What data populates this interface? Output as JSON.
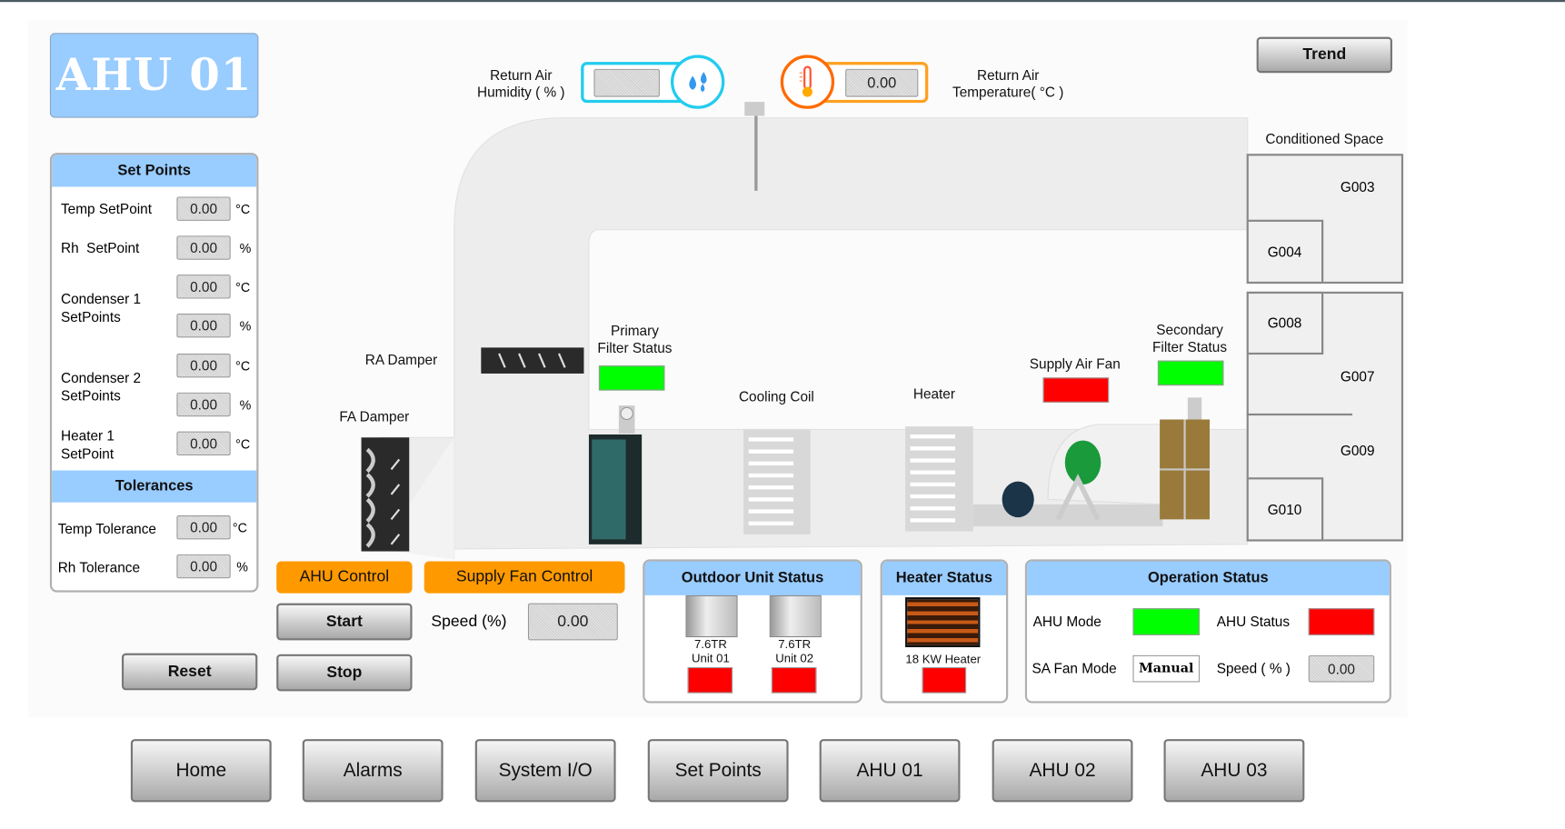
{
  "title": "AHU 01",
  "trend_label": "Trend",
  "return_air": {
    "humidity_label_1": "Return Air",
    "humidity_label_2": "Humidity ( % )",
    "humidity_value": "",
    "temperature_label_1": "Return Air",
    "temperature_label_2": "Temperature( °C )",
    "temperature_value": "0.00",
    "humidity_color": "#22ccee",
    "temperature_color": "#ff6a00"
  },
  "set_points": {
    "header": "Set Points",
    "temp_label": "Temp SetPoint",
    "temp_value": "0.00",
    "temp_unit": "°C",
    "rh_label": "Rh  SetPoint",
    "rh_value": "0.00",
    "rh_unit": "%",
    "cond1_label_1": "Condenser 1",
    "cond1_label_2": "SetPoints",
    "cond1_temp": "0.00",
    "cond1_temp_unit": "°C",
    "cond1_rh": "0.00",
    "cond1_rh_unit": "%",
    "cond2_label_1": "Condenser 2",
    "cond2_label_2": "SetPoints",
    "cond2_temp": "0.00",
    "cond2_temp_unit": "°C",
    "cond2_rh": "0.00",
    "cond2_rh_unit": "%",
    "heater_label_1": "Heater 1",
    "heater_label_2": "SetPoint",
    "heater_value": "0.00",
    "heater_unit": "°C"
  },
  "tolerances": {
    "header": "Tolerances",
    "temp_label": "Temp Tolerance",
    "temp_value": "0.00",
    "temp_unit": "°C",
    "rh_label": "Rh Tolerance",
    "rh_value": "0.00",
    "rh_unit": "%"
  },
  "reset_label": "Reset",
  "ahu_control": {
    "header": "AHU Control",
    "start": "Start",
    "stop": "Stop"
  },
  "supply_fan_control": {
    "header": "Supply Fan Control",
    "speed_label": "Speed (%)",
    "speed_value": "0.00"
  },
  "diagram": {
    "ra_damper": "RA Damper",
    "fa_damper": "FA Damper",
    "primary_filter_1": "Primary",
    "primary_filter_2": "Filter Status",
    "primary_filter_status": "#00ff00",
    "cooling_coil": "Cooling Coil",
    "heater": "Heater",
    "supply_air_fan": "Supply Air Fan",
    "supply_air_fan_status": "#ff0000",
    "secondary_filter_1": "Secondary",
    "secondary_filter_2": "Filter Status",
    "secondary_filter_status": "#00ff00"
  },
  "conditioned_space": {
    "label": "Conditioned Space",
    "rooms": [
      "G003",
      "G004",
      "G008",
      "G007",
      "G009",
      "G010"
    ]
  },
  "outdoor_unit_status": {
    "header": "Outdoor Unit Status",
    "units": [
      {
        "capacity": "7.6TR",
        "name": "Unit 01",
        "status": "#ff0000"
      },
      {
        "capacity": "7.6TR",
        "name": "Unit 02",
        "status": "#ff0000"
      }
    ]
  },
  "heater_status": {
    "header": "Heater Status",
    "name": "18 KW Heater",
    "status": "#ff0000"
  },
  "operation_status": {
    "header": "Operation Status",
    "ahu_mode_label": "AHU Mode",
    "ahu_mode_status": "#00ff00",
    "ahu_status_label": "AHU Status",
    "ahu_status": "#ff0000",
    "sa_fan_mode_label": "SA Fan Mode",
    "sa_fan_mode_value": "Manual",
    "speed_label": "Speed ( % )",
    "speed_value": "0.00"
  },
  "nav": [
    "Home",
    "Alarms",
    "System I/O",
    "Set Points",
    "AHU 01",
    "AHU 02",
    "AHU 03"
  ]
}
